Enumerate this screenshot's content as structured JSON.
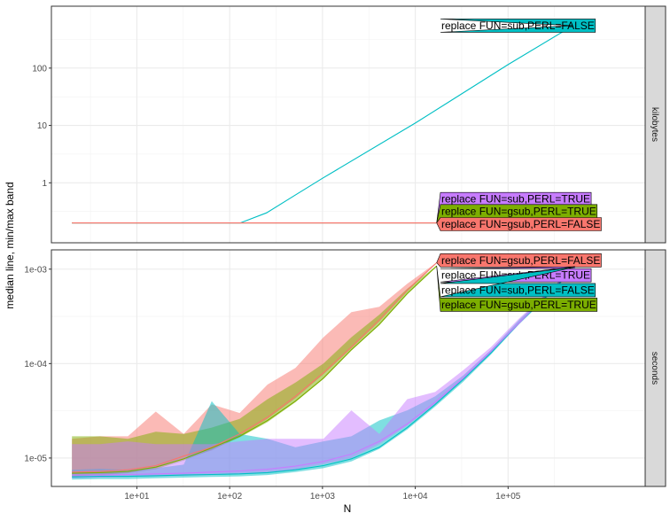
{
  "chart_data": {
    "type": "line",
    "title": "",
    "xlabel": "N",
    "ylabel": "median line, min/max band",
    "x_scale": "log10",
    "x_ticks": [
      10,
      100,
      1000,
      10000,
      100000
    ],
    "x_tick_labels": [
      "1e+01",
      "1e+02",
      "1e+03",
      "1e+04",
      "1e+05"
    ],
    "xlim": [
      1.2,
      3000000
    ],
    "grid": true,
    "legend": "none (direct labels at right end of each series)",
    "series_colors": {
      "replace FUN=gsub,PERL=FALSE": "#F8766D",
      "replace FUN=gsub,PERL=TRUE": "#7CAE00",
      "replace FUN=sub,PERL=FALSE": "#00BFC4",
      "replace FUN=sub,PERL=TRUE": "#C77CFF"
    },
    "panels": [
      {
        "strip": "kilobytes",
        "y_scale": "log10",
        "y_ticks": [
          1,
          10,
          100
        ],
        "y_tick_labels": [
          "1",
          "10",
          "100"
        ],
        "ylim": [
          0.09,
          1200
        ],
        "series": [
          {
            "name": "replace FUN=sub,PERL=FALSE",
            "x": [
              2,
              10,
              100,
              130,
              250,
              500,
              1000,
              10000,
              100000,
              500000
            ],
            "median": [
              0.2,
              0.2,
              0.2,
              0.2,
              0.3,
              0.6,
              1.2,
              11,
              115,
              550
            ],
            "min": [
              0.2,
              0.2,
              0.2,
              0.2,
              0.3,
              0.6,
              1.2,
              11,
              115,
              550
            ],
            "max": [
              0.2,
              0.2,
              0.2,
              0.2,
              0.3,
              0.6,
              1.2,
              11,
              115,
              550
            ]
          },
          {
            "name": "replace FUN=sub,PERL=TRUE",
            "x": [
              2,
              10,
              100,
              1000,
              10000,
              17000
            ],
            "median": [
              0.2,
              0.2,
              0.2,
              0.2,
              0.2,
              0.2
            ],
            "min": [
              0.2,
              0.2,
              0.2,
              0.2,
              0.2,
              0.2
            ],
            "max": [
              0.2,
              0.2,
              0.2,
              0.2,
              0.2,
              0.2
            ]
          },
          {
            "name": "replace FUN=gsub,PERL=TRUE",
            "x": [
              2,
              10,
              100,
              1000,
              10000,
              17000
            ],
            "median": [
              0.2,
              0.2,
              0.2,
              0.2,
              0.2,
              0.2
            ],
            "min": [
              0.2,
              0.2,
              0.2,
              0.2,
              0.2,
              0.2
            ],
            "max": [
              0.2,
              0.2,
              0.2,
              0.2,
              0.2,
              0.2
            ]
          },
          {
            "name": "replace FUN=gsub,PERL=FALSE",
            "x": [
              2,
              10,
              100,
              1000,
              10000,
              17000
            ],
            "median": [
              0.2,
              0.2,
              0.2,
              0.2,
              0.2,
              0.2
            ],
            "min": [
              0.2,
              0.2,
              0.2,
              0.2,
              0.2,
              0.2
            ],
            "max": [
              0.2,
              0.2,
              0.2,
              0.2,
              0.2,
              0.2
            ]
          }
        ],
        "direct_labels": [
          {
            "text": "replace FUN=sub,PERL=FALSE",
            "color": "#00BFC4",
            "anchor_x": 500000,
            "anchor_y": 550,
            "label_y": 550
          },
          {
            "text": "replace FUN=sub,PERL=TRUE",
            "color": "#C77CFF",
            "anchor_x": 17000,
            "anchor_y": 0.2,
            "label_y": 0.52
          },
          {
            "text": "replace FUN=gsub,PERL=TRUE",
            "color": "#7CAE00",
            "anchor_x": 17000,
            "anchor_y": 0.2,
            "label_y": 0.32
          },
          {
            "text": "replace FUN=gsub,PERL=FALSE",
            "color": "#F8766D",
            "anchor_x": 17000,
            "anchor_y": 0.2,
            "label_y": 0.19
          }
        ]
      },
      {
        "strip": "seconds",
        "y_scale": "log10",
        "y_ticks": [
          1e-05,
          0.0001,
          0.001
        ],
        "y_tick_labels": [
          "1e-05",
          "1e-04",
          "1e-03"
        ],
        "ylim": [
          5e-06,
          0.0016
        ],
        "series": [
          {
            "name": "replace FUN=gsub,PERL=FALSE",
            "x": [
              2,
              4,
              8,
              16,
              32,
              64,
              128,
              256,
              512,
              1024,
              2048,
              4096,
              8192,
              17000
            ],
            "median": [
              7.1e-06,
              7.2e-06,
              7.5e-06,
              8.3e-06,
              1.05e-05,
              1.3e-05,
              1.8e-05,
              2.7e-05,
              4.5e-05,
              8e-05,
              0.00015,
              0.00029,
              0.0006,
              0.00117
            ],
            "min": [
              6.4e-06,
              6.6e-06,
              7e-06,
              7.8e-06,
              9.8e-06,
              1.2e-05,
              1.7e-05,
              2.6e-05,
              4.3e-05,
              7.7e-05,
              0.000145,
              0.00028,
              0.00058,
              0.00116
            ],
            "max": [
              1.6e-05,
              1.7e-05,
              1.7e-05,
              3.1e-05,
              1.8e-05,
              3.7e-05,
              3e-05,
              6e-05,
              9e-05,
              0.00019,
              0.00035,
              0.0004,
              0.0007,
              0.00118
            ]
          },
          {
            "name": "replace FUN=gsub,PERL=TRUE",
            "x": [
              2,
              4,
              8,
              16,
              32,
              64,
              128,
              256,
              512,
              1024,
              2048,
              4096,
              8192,
              17000
            ],
            "median": [
              6.9e-06,
              7e-06,
              7.2e-06,
              8e-06,
              9.8e-06,
              1.28e-05,
              1.7e-05,
              2.5e-05,
              4e-05,
              7e-05,
              0.00014,
              0.00026,
              0.00055,
              0.00108
            ],
            "min": [
              6.4e-06,
              6.6e-06,
              6.9e-06,
              7.6e-06,
              9.4e-06,
              1.22e-05,
              1.65e-05,
              2.4e-05,
              3.9e-05,
              6.9e-05,
              0.000138,
              0.000255,
              0.00054,
              0.00107
            ],
            "max": [
              1.7e-05,
              1.7e-05,
              1.6e-05,
              1.9e-05,
              1.8e-05,
              2.1e-05,
              2.6e-05,
              4.2e-05,
              6.3e-05,
              0.0001,
              0.00019,
              0.00033,
              0.00062,
              0.00109
            ]
          },
          {
            "name": "replace FUN=sub,PERL=FALSE",
            "x": [
              2,
              4,
              8,
              16,
              32,
              64,
              128,
              256,
              512,
              1024,
              2048,
              4096,
              8192,
              16384,
              32768,
              65536,
              131072,
              262144,
              524288
            ],
            "median": [
              6.3e-06,
              6.4e-06,
              6.4e-06,
              6.5e-06,
              6.6e-06,
              6.7e-06,
              6.8e-06,
              7e-06,
              7.5e-06,
              8.3e-06,
              9.8e-06,
              1.3e-05,
              2.1e-05,
              3.7e-05,
              6.8e-05,
              0.00013,
              0.00027,
              0.00052,
              0.00105
            ],
            "min": [
              5.9e-06,
              6e-06,
              6e-06,
              6.1e-06,
              6.2e-06,
              6.3e-06,
              6.4e-06,
              6.6e-06,
              7.1e-06,
              7.8e-06,
              9.2e-06,
              1.25e-05,
              2e-05,
              3.5e-05,
              6.4e-05,
              0.000125,
              0.00026,
              0.0005,
              0.00102
            ],
            "max": [
              7.5e-06,
              7.7e-06,
              7.5e-06,
              7.8e-06,
              8.5e-06,
              4e-05,
              1.8e-05,
              1.6e-05,
              1.3e-05,
              1.5e-05,
              1.7e-05,
              2.5e-05,
              3.2e-05,
              4.5e-05,
              7.5e-05,
              0.00014,
              0.00029,
              0.00055,
              0.0011
            ]
          },
          {
            "name": "replace FUN=sub,PERL=TRUE",
            "x": [
              2,
              4,
              8,
              16,
              32,
              64,
              128,
              256,
              512,
              1024,
              2048,
              4096,
              8192,
              16384,
              32768,
              65536,
              131072,
              262144,
              524288
            ],
            "median": [
              6.6e-06,
              6.6e-06,
              6.7e-06,
              6.8e-06,
              6.9e-06,
              7.1e-06,
              7.3e-06,
              7.6e-06,
              8.2e-06,
              9.2e-06,
              1.1e-05,
              1.5e-05,
              2.3e-05,
              3.9e-05,
              7e-05,
              0.000135,
              0.00027,
              0.00054,
              0.00106
            ],
            "min": [
              6.1e-06,
              6.2e-06,
              6.3e-06,
              6.4e-06,
              6.5e-06,
              6.6e-06,
              6.8e-06,
              7.1e-06,
              7.6e-06,
              8.6e-06,
              1e-05,
              1.4e-05,
              2.2e-05,
              3.7e-05,
              6.7e-05,
              0.00013,
              0.00026,
              0.00052,
              0.00104
            ],
            "max": [
              1.4e-05,
              1.4e-05,
              1.5e-05,
              1.4e-05,
              1.4e-05,
              1.4e-05,
              1.5e-05,
              1.6e-05,
              1.6e-05,
              1.6e-05,
              3.2e-05,
              1.8e-05,
              4.2e-05,
              5e-05,
              8.5e-05,
              0.00015,
              0.0003,
              0.00056,
              0.00108
            ]
          }
        ],
        "direct_labels": [
          {
            "text": "replace FUN=gsub,PERL=FALSE",
            "color": "#F8766D",
            "anchor_x": 17000,
            "anchor_y": 0.00117,
            "label_y": 0.00124
          },
          {
            "text": "replace FUN=sub,PERL=TRUE",
            "color": "#C77CFF",
            "anchor_x": 524288,
            "anchor_y": 0.00106,
            "label_y": 0.00086
          },
          {
            "text": "replace FUN=sub,PERL=FALSE",
            "color": "#00BFC4",
            "anchor_x": 524288,
            "anchor_y": 0.00105,
            "label_y": 0.0006
          },
          {
            "text": "replace FUN=gsub,PERL=TRUE",
            "color": "#7CAE00",
            "anchor_x": 17000,
            "anchor_y": 0.00108,
            "label_y": 0.00042
          }
        ]
      }
    ]
  }
}
